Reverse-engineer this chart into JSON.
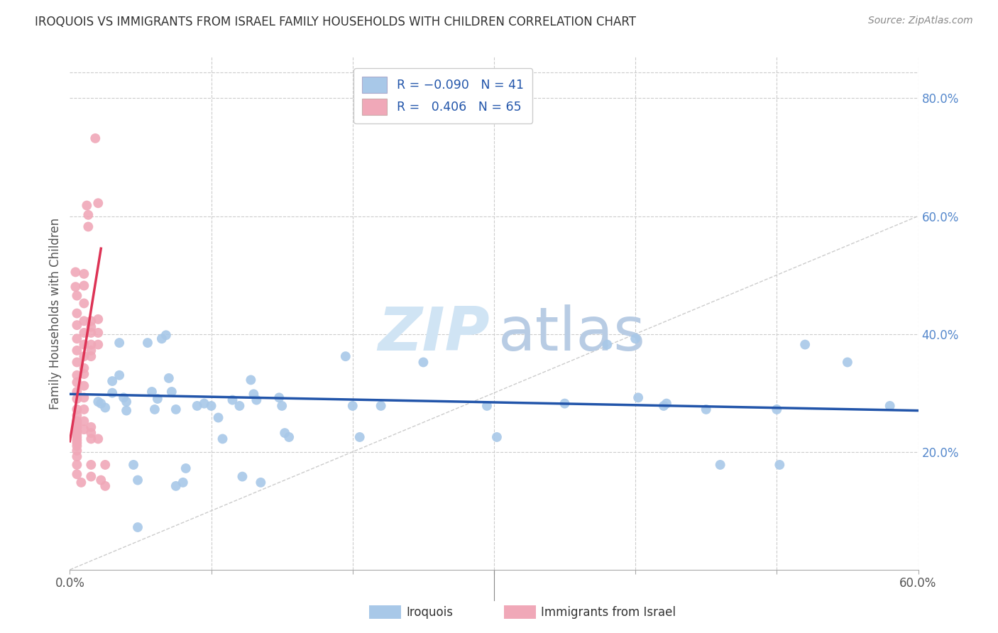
{
  "title": "IROQUOIS VS IMMIGRANTS FROM ISRAEL FAMILY HOUSEHOLDS WITH CHILDREN CORRELATION CHART",
  "source": "Source: ZipAtlas.com",
  "ylabel": "Family Households with Children",
  "xlim": [
    0.0,
    0.6
  ],
  "ylim": [
    0.0,
    0.87
  ],
  "yticks": [
    0.2,
    0.4,
    0.6,
    0.8
  ],
  "ytick_labels": [
    "20.0%",
    "40.0%",
    "60.0%",
    "80.0%"
  ],
  "xticks": [
    0.0,
    0.1,
    0.2,
    0.3,
    0.4,
    0.5,
    0.6
  ],
  "xtick_labels": [
    "0.0%",
    "",
    "",
    "",
    "",
    "",
    "60.0%"
  ],
  "color_blue": "#A8C8E8",
  "color_pink": "#F0A8B8",
  "line_blue": "#2255AA",
  "line_pink": "#DD3355",
  "line_diag_color": "#CCCCCC",
  "iroquois_scatter": [
    [
      0.02,
      0.285
    ],
    [
      0.025,
      0.275
    ],
    [
      0.03,
      0.3
    ],
    [
      0.03,
      0.32
    ],
    [
      0.035,
      0.385
    ],
    [
      0.035,
      0.33
    ],
    [
      0.038,
      0.292
    ],
    [
      0.04,
      0.27
    ],
    [
      0.04,
      0.285
    ],
    [
      0.045,
      0.178
    ],
    [
      0.048,
      0.152
    ],
    [
      0.055,
      0.385
    ],
    [
      0.058,
      0.302
    ],
    [
      0.06,
      0.272
    ],
    [
      0.062,
      0.29
    ],
    [
      0.065,
      0.392
    ],
    [
      0.068,
      0.398
    ],
    [
      0.07,
      0.325
    ],
    [
      0.072,
      0.302
    ],
    [
      0.075,
      0.272
    ],
    [
      0.075,
      0.142
    ],
    [
      0.08,
      0.148
    ],
    [
      0.09,
      0.278
    ],
    [
      0.095,
      0.282
    ],
    [
      0.1,
      0.278
    ],
    [
      0.105,
      0.258
    ],
    [
      0.108,
      0.222
    ],
    [
      0.115,
      0.288
    ],
    [
      0.12,
      0.278
    ],
    [
      0.122,
      0.158
    ],
    [
      0.128,
      0.322
    ],
    [
      0.13,
      0.298
    ],
    [
      0.132,
      0.288
    ],
    [
      0.135,
      0.148
    ],
    [
      0.148,
      0.292
    ],
    [
      0.15,
      0.278
    ],
    [
      0.152,
      0.232
    ],
    [
      0.155,
      0.225
    ],
    [
      0.195,
      0.362
    ],
    [
      0.2,
      0.278
    ],
    [
      0.205,
      0.225
    ],
    [
      0.22,
      0.278
    ],
    [
      0.25,
      0.352
    ],
    [
      0.295,
      0.278
    ],
    [
      0.302,
      0.225
    ],
    [
      0.35,
      0.282
    ],
    [
      0.38,
      0.382
    ],
    [
      0.4,
      0.392
    ],
    [
      0.402,
      0.292
    ],
    [
      0.42,
      0.278
    ],
    [
      0.45,
      0.272
    ],
    [
      0.46,
      0.178
    ],
    [
      0.5,
      0.272
    ],
    [
      0.502,
      0.178
    ],
    [
      0.52,
      0.382
    ],
    [
      0.55,
      0.352
    ],
    [
      0.58,
      0.278
    ],
    [
      0.048,
      0.072
    ],
    [
      0.082,
      0.172
    ],
    [
      0.422,
      0.282
    ],
    [
      0.022,
      0.282
    ]
  ],
  "israel_scatter": [
    [
      0.004,
      0.505
    ],
    [
      0.004,
      0.48
    ],
    [
      0.005,
      0.465
    ],
    [
      0.005,
      0.435
    ],
    [
      0.005,
      0.415
    ],
    [
      0.005,
      0.392
    ],
    [
      0.005,
      0.372
    ],
    [
      0.005,
      0.352
    ],
    [
      0.005,
      0.33
    ],
    [
      0.005,
      0.318
    ],
    [
      0.005,
      0.302
    ],
    [
      0.005,
      0.29
    ],
    [
      0.005,
      0.272
    ],
    [
      0.005,
      0.262
    ],
    [
      0.005,
      0.252
    ],
    [
      0.005,
      0.248
    ],
    [
      0.005,
      0.242
    ],
    [
      0.005,
      0.235
    ],
    [
      0.005,
      0.23
    ],
    [
      0.005,
      0.225
    ],
    [
      0.005,
      0.22
    ],
    [
      0.005,
      0.215
    ],
    [
      0.005,
      0.21
    ],
    [
      0.005,
      0.202
    ],
    [
      0.005,
      0.192
    ],
    [
      0.005,
      0.178
    ],
    [
      0.005,
      0.162
    ],
    [
      0.008,
      0.148
    ],
    [
      0.01,
      0.502
    ],
    [
      0.01,
      0.482
    ],
    [
      0.01,
      0.452
    ],
    [
      0.01,
      0.422
    ],
    [
      0.01,
      0.402
    ],
    [
      0.01,
      0.382
    ],
    [
      0.01,
      0.362
    ],
    [
      0.01,
      0.342
    ],
    [
      0.01,
      0.332
    ],
    [
      0.01,
      0.312
    ],
    [
      0.01,
      0.292
    ],
    [
      0.01,
      0.272
    ],
    [
      0.01,
      0.252
    ],
    [
      0.01,
      0.238
    ],
    [
      0.012,
      0.618
    ],
    [
      0.013,
      0.602
    ],
    [
      0.013,
      0.582
    ],
    [
      0.015,
      0.422
    ],
    [
      0.015,
      0.412
    ],
    [
      0.015,
      0.402
    ],
    [
      0.015,
      0.382
    ],
    [
      0.015,
      0.372
    ],
    [
      0.015,
      0.362
    ],
    [
      0.015,
      0.242
    ],
    [
      0.015,
      0.232
    ],
    [
      0.015,
      0.222
    ],
    [
      0.015,
      0.178
    ],
    [
      0.015,
      0.158
    ],
    [
      0.018,
      0.732
    ],
    [
      0.02,
      0.622
    ],
    [
      0.02,
      0.425
    ],
    [
      0.02,
      0.402
    ],
    [
      0.02,
      0.382
    ],
    [
      0.02,
      0.222
    ],
    [
      0.022,
      0.152
    ],
    [
      0.025,
      0.178
    ],
    [
      0.025,
      0.142
    ]
  ],
  "iroquois_line_x": [
    0.0,
    0.6
  ],
  "iroquois_line_y": [
    0.298,
    0.27
  ],
  "israel_line_x": [
    0.0,
    0.022
  ],
  "israel_line_y": [
    0.218,
    0.545
  ],
  "diag_line_x": [
    0.0,
    0.6
  ],
  "diag_line_y": [
    0.0,
    0.6
  ]
}
